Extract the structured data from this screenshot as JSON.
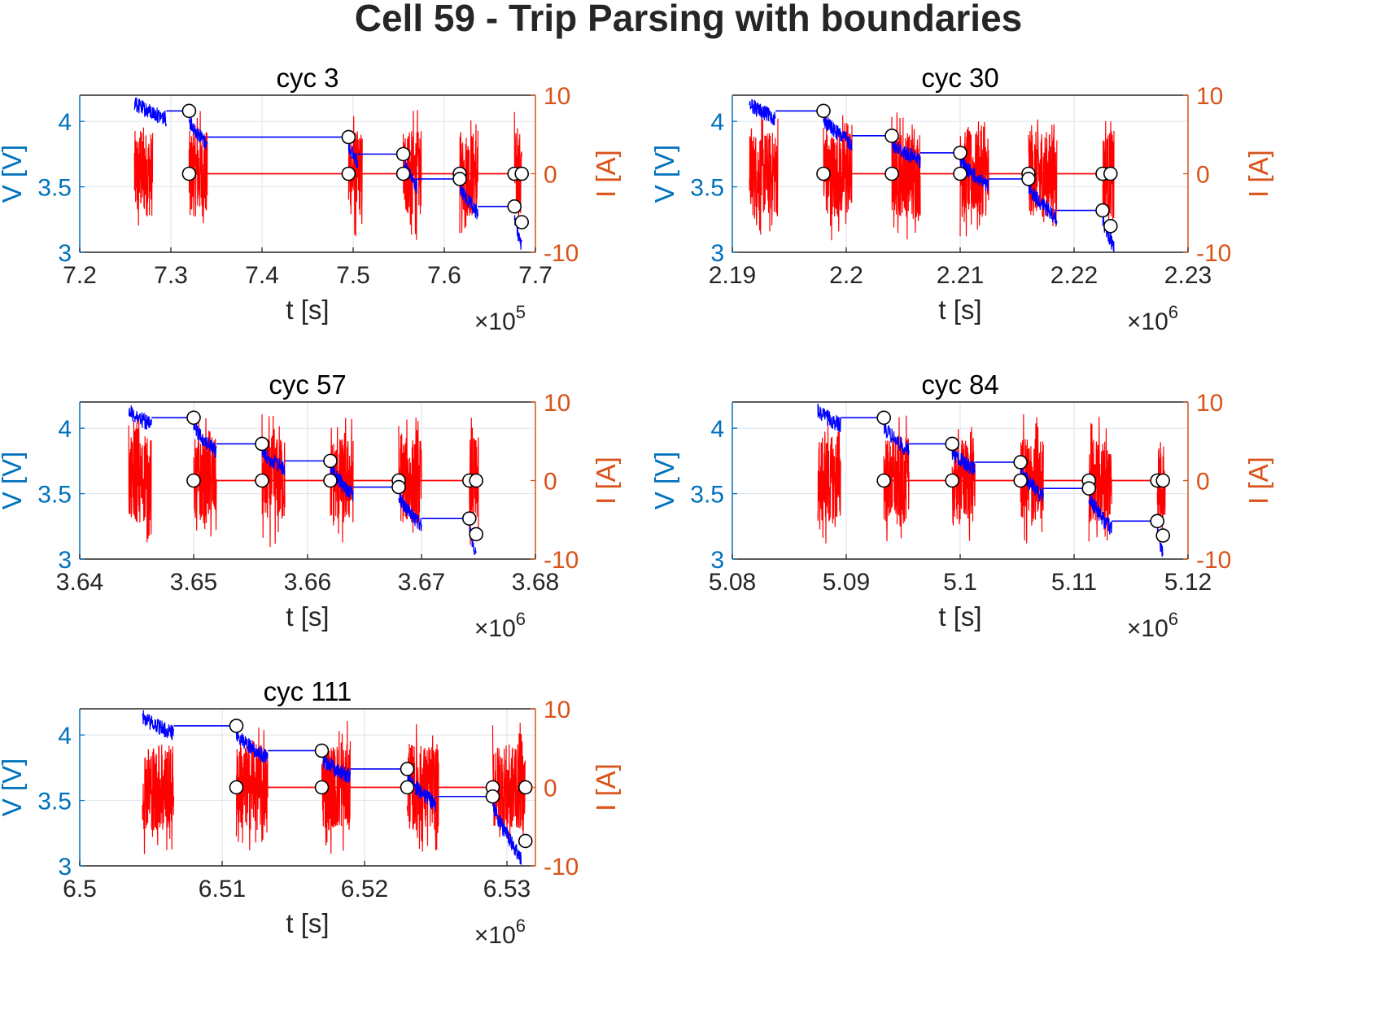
{
  "suptitle": "Cell 59 - Trip Parsing with boundaries",
  "colors": {
    "voltage_axis": "#0072BD",
    "current_axis": "#D95319",
    "voltage_line": "#0000FF",
    "current_line": "#FF0000",
    "grid": "#dfe6ee",
    "text": "#262626"
  },
  "chart_data": [
    {
      "type": "line",
      "title": "cyc 3",
      "xlabel": "t [s]",
      "ylabel_left": "V [V]",
      "ylabel_right": "I [A]",
      "x_multiplier": "10^5",
      "xlim": [
        7.2,
        7.7
      ],
      "xticks": [
        "7.2",
        "7.3",
        "7.4",
        "7.5",
        "7.6",
        "7.7"
      ],
      "ylim_left": [
        3,
        4.2
      ],
      "yticks_left": [
        "3",
        "3.5",
        "4"
      ],
      "ylim_right": [
        -10,
        10
      ],
      "yticks_right": [
        "-10",
        "0",
        "10"
      ],
      "grid": true,
      "series": [
        {
          "name": "voltage",
          "axis": "left",
          "trips": [
            [
              7.26,
              7.295,
              4.2,
              4.08
            ],
            [
              7.32,
              7.34,
              4.08,
              3.88
            ],
            [
              7.495,
              7.505,
              3.88,
              3.75
            ],
            [
              7.555,
              7.57,
              3.75,
              3.56
            ],
            [
              7.617,
              7.637,
              3.56,
              3.35
            ],
            [
              7.677,
              7.685,
              3.35,
              3.1
            ]
          ],
          "boundaries": [
            [
              7.32,
              4.08
            ],
            [
              7.495,
              3.88
            ],
            [
              7.555,
              3.75
            ],
            [
              7.617,
              3.56
            ],
            [
              7.677,
              3.35
            ],
            [
              7.685,
              3.23
            ]
          ]
        },
        {
          "name": "current",
          "axis": "right",
          "trips": [
            [
              7.26,
              7.28
            ],
            [
              7.32,
              7.34
            ],
            [
              7.495,
              7.51
            ],
            [
              7.555,
              7.575
            ],
            [
              7.617,
              7.637
            ],
            [
              7.677,
              7.685
            ]
          ],
          "boundaries": [
            [
              7.32,
              0
            ],
            [
              7.495,
              0
            ],
            [
              7.555,
              0
            ],
            [
              7.617,
              0
            ],
            [
              7.677,
              0
            ],
            [
              7.685,
              0
            ]
          ]
        }
      ]
    },
    {
      "type": "line",
      "title": "cyc 30",
      "xlabel": "t [s]",
      "ylabel_left": "V [V]",
      "ylabel_right": "I [A]",
      "x_multiplier": "10^6",
      "xlim": [
        2.19,
        2.23
      ],
      "xticks": [
        "2.19",
        "2.2",
        "2.21",
        "2.22",
        "2.23"
      ],
      "ylim_left": [
        3,
        4.2
      ],
      "yticks_left": [
        "3",
        "3.5",
        "4"
      ],
      "ylim_right": [
        -10,
        10
      ],
      "yticks_right": [
        "-10",
        "0",
        "10"
      ],
      "grid": true,
      "series": [
        {
          "name": "voltage",
          "axis": "left",
          "trips": [
            [
              2.1915,
              2.1938,
              4.2,
              4.08
            ],
            [
              2.198,
              2.2005,
              4.08,
              3.89
            ],
            [
              2.204,
              2.2065,
              3.89,
              3.76
            ],
            [
              2.21,
              2.2125,
              3.76,
              3.56
            ],
            [
              2.216,
              2.2185,
              3.56,
              3.32
            ],
            [
              2.2225,
              2.2235,
              3.32,
              3.1
            ]
          ],
          "boundaries": [
            [
              2.198,
              4.08
            ],
            [
              2.204,
              3.89
            ],
            [
              2.21,
              3.76
            ],
            [
              2.216,
              3.56
            ],
            [
              2.2225,
              3.32
            ],
            [
              2.2232,
              3.2
            ]
          ]
        },
        {
          "name": "current",
          "axis": "right",
          "trips": [
            [
              2.1915,
              2.194
            ],
            [
              2.198,
              2.2005
            ],
            [
              2.204,
              2.2065
            ],
            [
              2.21,
              2.2125
            ],
            [
              2.216,
              2.2185
            ],
            [
              2.2225,
              2.2235
            ]
          ],
          "boundaries": [
            [
              2.198,
              0
            ],
            [
              2.204,
              0
            ],
            [
              2.21,
              0
            ],
            [
              2.216,
              0
            ],
            [
              2.2225,
              0
            ],
            [
              2.2232,
              0
            ]
          ]
        }
      ]
    },
    {
      "type": "line",
      "title": "cyc 57",
      "xlabel": "t [s]",
      "ylabel_left": "V [V]",
      "ylabel_right": "I [A]",
      "x_multiplier": "10^6",
      "xlim": [
        3.64,
        3.68
      ],
      "xticks": [
        "3.64",
        "3.65",
        "3.66",
        "3.67",
        "3.68"
      ],
      "ylim_left": [
        3,
        4.2
      ],
      "yticks_left": [
        "3",
        "3.5",
        "4"
      ],
      "ylim_right": [
        -10,
        10
      ],
      "yticks_right": [
        "-10",
        "0",
        "10"
      ],
      "grid": true,
      "series": [
        {
          "name": "voltage",
          "axis": "left",
          "trips": [
            [
              3.6443,
              3.6463,
              4.2,
              4.08
            ],
            [
              3.65,
              3.652,
              4.08,
              3.88
            ],
            [
              3.656,
              3.658,
              3.88,
              3.75
            ],
            [
              3.662,
              3.664,
              3.75,
              3.55
            ],
            [
              3.668,
              3.67,
              3.55,
              3.31
            ],
            [
              3.6742,
              3.6748,
              3.31,
              3.1
            ]
          ],
          "boundaries": [
            [
              3.65,
              4.08
            ],
            [
              3.656,
              3.88
            ],
            [
              3.662,
              3.75
            ],
            [
              3.668,
              3.55
            ],
            [
              3.6742,
              3.31
            ],
            [
              3.6748,
              3.19
            ]
          ]
        },
        {
          "name": "current",
          "axis": "right",
          "trips": [
            [
              3.6443,
              3.6463
            ],
            [
              3.65,
              3.652
            ],
            [
              3.656,
              3.658
            ],
            [
              3.662,
              3.664
            ],
            [
              3.668,
              3.67
            ],
            [
              3.6742,
              3.675
            ]
          ],
          "boundaries": [
            [
              3.65,
              0
            ],
            [
              3.656,
              0
            ],
            [
              3.662,
              0
            ],
            [
              3.668,
              0
            ],
            [
              3.6742,
              0
            ],
            [
              3.6748,
              0
            ]
          ]
        }
      ]
    },
    {
      "type": "line",
      "title": "cyc 84",
      "xlabel": "t [s]",
      "ylabel_left": "V [V]",
      "ylabel_right": "I [A]",
      "x_multiplier": "10^6",
      "xlim": [
        5.08,
        5.12
      ],
      "xticks": [
        "5.08",
        "5.09",
        "5.1",
        "5.11",
        "5.12"
      ],
      "ylim_left": [
        3,
        4.2
      ],
      "yticks_left": [
        "3",
        "3.5",
        "4"
      ],
      "ylim_right": [
        -10,
        10
      ],
      "yticks_right": [
        "-10",
        "0",
        "10"
      ],
      "grid": true,
      "series": [
        {
          "name": "voltage",
          "axis": "left",
          "trips": [
            [
              5.0875,
              5.0895,
              4.2,
              4.08
            ],
            [
              5.0933,
              5.0955,
              4.08,
              3.88
            ],
            [
              5.0993,
              5.1013,
              3.88,
              3.74
            ],
            [
              5.1053,
              5.1073,
              3.74,
              3.54
            ],
            [
              5.1113,
              5.1133,
              3.54,
              3.29
            ],
            [
              5.1173,
              5.1178,
              3.29,
              3.1
            ]
          ],
          "boundaries": [
            [
              5.0933,
              4.08
            ],
            [
              5.0993,
              3.88
            ],
            [
              5.1053,
              3.74
            ],
            [
              5.1113,
              3.54
            ],
            [
              5.1173,
              3.29
            ],
            [
              5.1178,
              3.18
            ]
          ]
        },
        {
          "name": "current",
          "axis": "right",
          "trips": [
            [
              5.0875,
              5.0895
            ],
            [
              5.0933,
              5.0955
            ],
            [
              5.0993,
              5.1013
            ],
            [
              5.1053,
              5.1073
            ],
            [
              5.1113,
              5.1133
            ],
            [
              5.1173,
              5.118
            ]
          ],
          "boundaries": [
            [
              5.0933,
              0
            ],
            [
              5.0993,
              0
            ],
            [
              5.1053,
              0
            ],
            [
              5.1113,
              0
            ],
            [
              5.1173,
              0
            ],
            [
              5.1178,
              0
            ]
          ]
        }
      ]
    },
    {
      "type": "line",
      "title": "cyc 111",
      "xlabel": "t [s]",
      "ylabel_left": "V [V]",
      "ylabel_right": "I [A]",
      "x_multiplier": "10^6",
      "xlim": [
        6.5,
        6.532
      ],
      "xticks": [
        "6.5",
        "6.51",
        "6.52",
        "6.53"
      ],
      "ylim_left": [
        3,
        4.2
      ],
      "yticks_left": [
        "3",
        "3.5",
        "4"
      ],
      "ylim_right": [
        -10,
        10
      ],
      "yticks_right": [
        "-10",
        "0",
        "10"
      ],
      "grid": true,
      "series": [
        {
          "name": "voltage",
          "axis": "left",
          "trips": [
            [
              6.5044,
              6.5066,
              4.2,
              4.07
            ],
            [
              6.511,
              6.5132,
              4.07,
              3.88
            ],
            [
              6.517,
              6.519,
              3.88,
              3.74
            ],
            [
              6.523,
              6.525,
              3.74,
              3.53
            ],
            [
              6.529,
              6.531,
              3.53,
              3.12
            ]
          ],
          "boundaries": [
            [
              6.511,
              4.07
            ],
            [
              6.517,
              3.88
            ],
            [
              6.523,
              3.74
            ],
            [
              6.529,
              3.53
            ],
            [
              6.5313,
              3.19
            ]
          ]
        },
        {
          "name": "current",
          "axis": "right",
          "trips": [
            [
              6.5044,
              6.5066
            ],
            [
              6.511,
              6.5132
            ],
            [
              6.517,
              6.519
            ],
            [
              6.523,
              6.5252
            ],
            [
              6.529,
              6.5313
            ]
          ],
          "boundaries": [
            [
              6.511,
              0
            ],
            [
              6.517,
              0
            ],
            [
              6.523,
              0
            ],
            [
              6.529,
              0
            ],
            [
              6.5313,
              0
            ]
          ]
        }
      ]
    }
  ]
}
